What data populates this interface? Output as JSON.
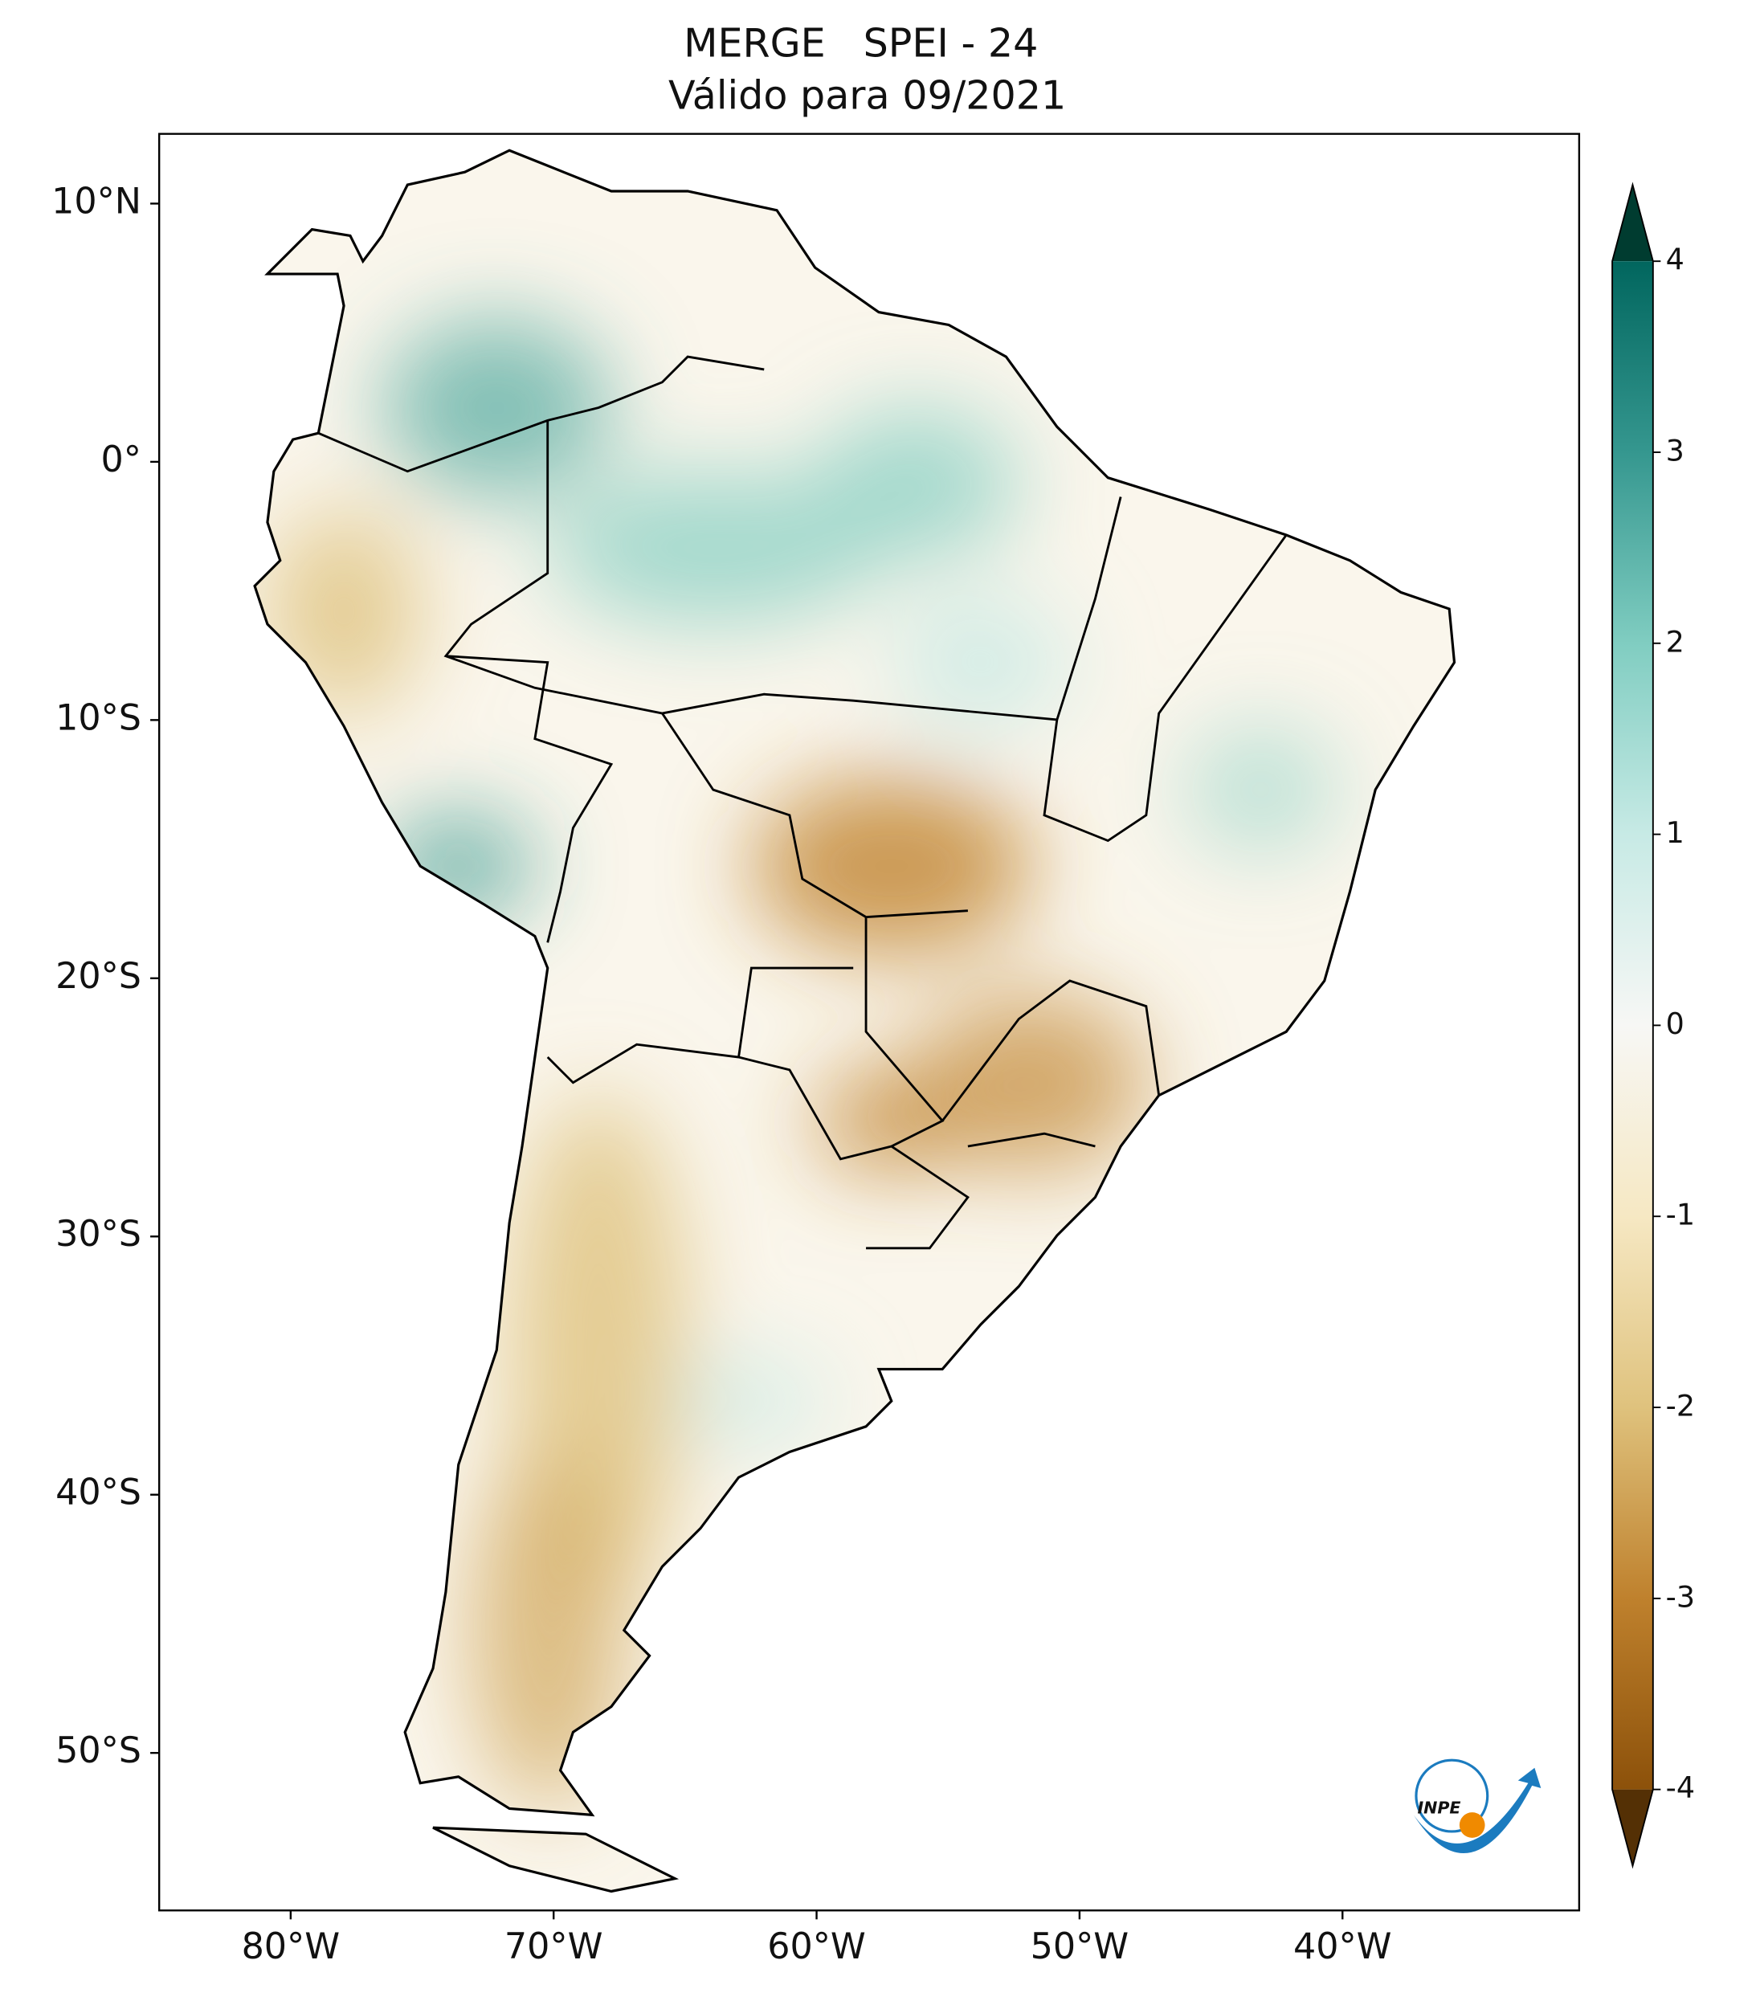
{
  "map": {
    "title": "MERGE   SPEI - 24",
    "subtitle": "Válido para 09/2021",
    "xlim": [
      -85,
      -31
    ],
    "ylim": [
      -56.1,
      12.7
    ],
    "xticks": [
      {
        "value": -80,
        "label": "80°W"
      },
      {
        "value": -70,
        "label": "70°W"
      },
      {
        "value": -60,
        "label": "60°W"
      },
      {
        "value": -50,
        "label": "50°W"
      },
      {
        "value": -40,
        "label": "40°W"
      }
    ],
    "yticks": [
      {
        "value": 10,
        "label": "10°N"
      },
      {
        "value": 0,
        "label": "0°"
      },
      {
        "value": -10,
        "label": "10°S"
      },
      {
        "value": -20,
        "label": "20°S"
      },
      {
        "value": -30,
        "label": "30°S"
      },
      {
        "value": -40,
        "label": "40°S"
      },
      {
        "value": -50,
        "label": "50°S"
      }
    ],
    "colorbar": {
      "lim": [
        -4,
        4
      ],
      "ticks": [
        4,
        3,
        2,
        1,
        0,
        -1,
        -2,
        -3,
        -4
      ],
      "colors": [
        "#543005",
        "#8c510a",
        "#bf812d",
        "#dfc27d",
        "#f6e8c3",
        "#f7f7f5",
        "#c7eae5",
        "#80cdc1",
        "#35978f",
        "#01665e",
        "#003c30"
      ]
    }
  },
  "logo": "INPE"
}
